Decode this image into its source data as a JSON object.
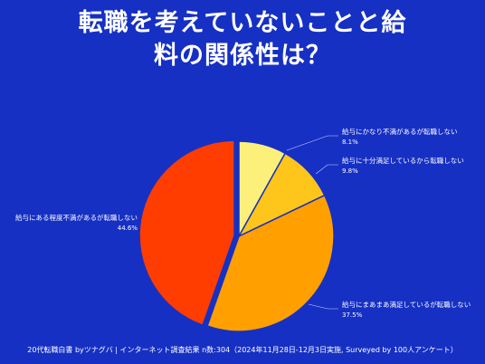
{
  "title_line1": "転職を考えていないことと給",
  "title_line2": "料の関係性は？",
  "footer": "20代転職白書 byツナグバ | インターネット調査結果 n数:304（2024年11月28日-12月3日実施, Surveyed by 100人アンケート）",
  "chart_data": {
    "type": "pie",
    "title": "転職を考えていないことと給料の関係性は？",
    "slices": [
      {
        "label": "給与にかなり不満があるが転職しない",
        "value": 8.1,
        "display": "8.1%",
        "color": "#fdf07a"
      },
      {
        "label": "給与に十分満足しているから転職しない",
        "value": 9.8,
        "display": "9.8%",
        "color": "#fec51a"
      },
      {
        "label": "給与にまあまあ満足しているが転職しない",
        "value": 37.5,
        "display": "37.5%",
        "color": "#ffa000"
      },
      {
        "label": "給与にある程度不満があるが転職しない",
        "value": 44.6,
        "display": "44.6%",
        "color": "#ff3d00"
      }
    ]
  }
}
